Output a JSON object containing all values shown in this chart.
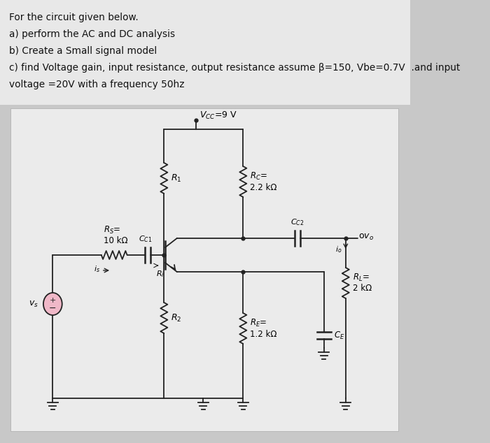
{
  "bg_outer": "#c8c8c8",
  "bg_text": "#e8e8e8",
  "bg_circuit": "#ebebeb",
  "line_color": "#222222",
  "text_color": "#333333",
  "vs_circle_fill": "#f0b8c8",
  "figsize": [
    7.0,
    6.34
  ],
  "dpi": 100,
  "text_lines": [
    "For the circuit given below.",
    "a) perform the AC and DC analysis",
    "b) Create a Small signal model"
  ],
  "text_line_c": "c) find Voltage gain, input resistance, output resistance assume β=150, Vbe=0.7V  .and input",
  "text_line_d": "voltage =20V with a frequency 50hz",
  "vcc_text": "$V_{CC}$=9 V",
  "rc_text1": "$R_C$=",
  "rc_text2": "2.2 kΩ",
  "re_text1": "$R_E$=",
  "re_text2": "1.2 kΩ",
  "rl_text1": "$R_L$=",
  "rl_text2": "2 kΩ",
  "rs_text1": "$R_S$=",
  "rs_text2": "10 kΩ",
  "r1_text": "$R_1$",
  "r2_text": "$R_2$",
  "ri_text": "$R_i$",
  "cc1_text": "$C_{C1}$",
  "cc2_text": "$C_{C2}$",
  "ce_text": "$C_E$",
  "vo_text": "o$v_o$",
  "is_text": "$i_s$",
  "io_text": "$i_o$",
  "vs_text": "$v_s$"
}
